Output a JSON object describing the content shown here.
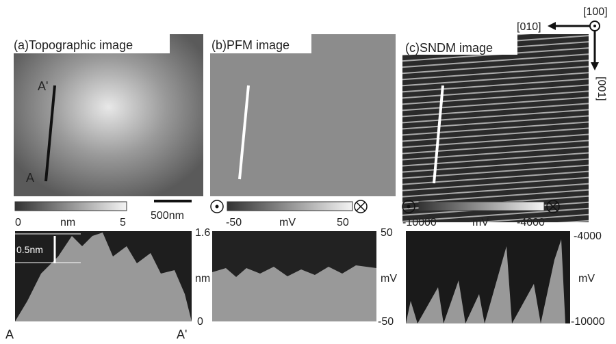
{
  "orientation": {
    "normal": "[100]",
    "horizontal": "[010]",
    "vertical": "[001]"
  },
  "panels": [
    {
      "title": "(a)Topographic image",
      "line_top": "A'",
      "line_bottom": "A",
      "colorbar": {
        "min": "0",
        "unit": "nm",
        "max": "5"
      },
      "scale_bar": "500nm",
      "profile": {
        "top": "1.6",
        "unit": "nm",
        "bottom": "0",
        "step": "0.5nm",
        "start": "A",
        "end": "A'"
      }
    },
    {
      "title": "(b)PFM image",
      "colorbar": {
        "min": "-50",
        "unit": "mV",
        "max": "50"
      },
      "profile": {
        "top": "50",
        "unit": "mV",
        "bottom": "-50"
      }
    },
    {
      "title": "(c)SNDM image",
      "colorbar": {
        "min": "-10000",
        "unit": "mV",
        "max": "-4000"
      },
      "profile": {
        "top": "-4000",
        "unit": "mV",
        "bottom": "-10000"
      }
    }
  ]
}
